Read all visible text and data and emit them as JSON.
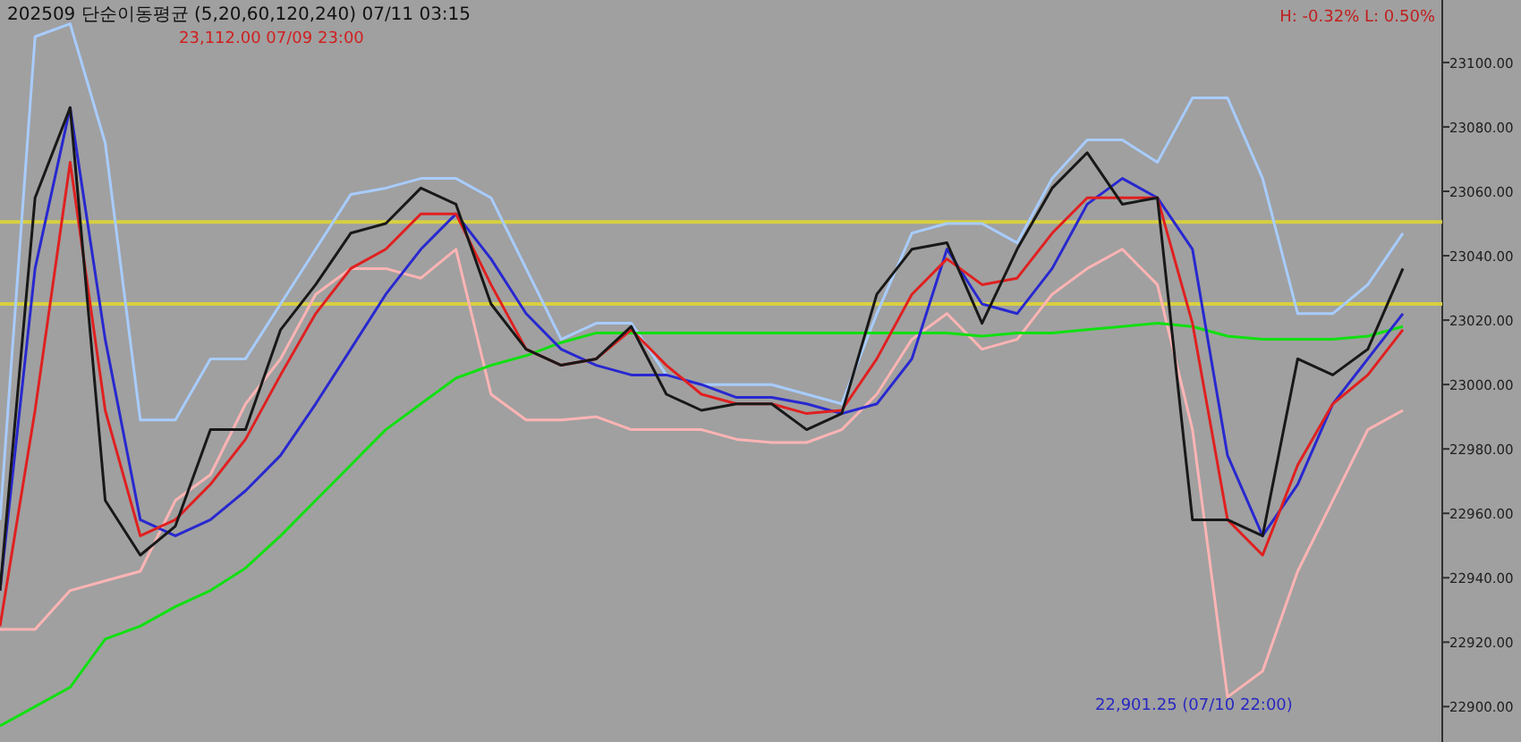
{
  "chart_data": {
    "type": "line",
    "title": "202509 단순이동평균 (5,20,60,120,240) 07/11 03:15",
    "annotations": [
      "H: -0.32%  L: 0.50%",
      "23,112.00 07/09 23:00",
      "22,901.25 (07/10 22:00)"
    ],
    "categories": [
      null,
      null,
      null,
      null,
      null,
      null,
      null,
      null,
      null,
      null,
      null,
      null,
      null,
      null,
      null,
      null,
      null,
      null,
      null,
      null,
      null,
      null,
      null,
      null,
      null,
      null,
      null,
      null,
      null,
      null,
      null,
      null,
      null,
      null,
      null,
      null,
      null,
      null,
      null,
      null,
      null
    ],
    "series": [
      {
        "color": "#a8ccff",
        "values": [
          22958,
          23108,
          23112,
          23075,
          22989,
          22989,
          23008,
          23008,
          23025,
          23042,
          23059,
          23061,
          23064,
          23064,
          23058,
          23036,
          23014,
          23019,
          23019,
          23003,
          23000,
          23000,
          23000,
          22997,
          22994,
          23022,
          23047,
          23050,
          23050,
          23044,
          23064,
          23076,
          23076,
          23069,
          23089,
          23089,
          23064,
          23022,
          23022,
          23031,
          23047
        ]
      },
      {
        "color": "#ffb4b4",
        "values": [
          22924,
          22924,
          22936,
          22939,
          22942,
          22964,
          22972,
          22994,
          23008,
          23028,
          23036,
          23036,
          23033,
          23042,
          22997,
          22989,
          22989,
          22990,
          22986,
          22986,
          22986,
          22983,
          22982,
          22982,
          22986,
          22997,
          23014,
          23022,
          23011,
          23014,
          23028,
          23036,
          23042,
          23031,
          22986,
          22903,
          22911,
          22942,
          22964,
          22986,
          22992
        ]
      },
      {
        "color": "#10e010",
        "values": [
          22894,
          22900,
          22906,
          22921,
          22925,
          22931,
          22936,
          22943,
          22953,
          22964,
          22975,
          22986,
          22994,
          23002,
          23006,
          23009,
          23013,
          23016,
          23016,
          23016,
          23016,
          23016,
          23016,
          23016,
          23016,
          23016,
          23016,
          23016,
          23015,
          23016,
          23016,
          23017,
          23018,
          23019,
          23018,
          23015,
          23014,
          23014,
          23014,
          23015,
          23018
        ]
      },
      {
        "color": "#2828d0",
        "values": [
          22936,
          23036,
          23086,
          23014,
          22958,
          22953,
          22958,
          22967,
          22978,
          22994,
          23011,
          23028,
          23042,
          23053,
          23039,
          23022,
          23011,
          23006,
          23003,
          23003,
          23000,
          22996,
          22996,
          22994,
          22991,
          22994,
          23008,
          23042,
          23025,
          23022,
          23036,
          23056,
          23064,
          23058,
          23042,
          22978,
          22953,
          22969,
          22994,
          23008,
          23022
        ]
      },
      {
        "color": "#e02020",
        "values": [
          22925,
          22992,
          23069,
          22992,
          22953,
          22958,
          22969,
          22983,
          23003,
          23022,
          23036,
          23042,
          23053,
          23053,
          23031,
          23011,
          23006,
          23008,
          23017,
          23006,
          22997,
          22994,
          22994,
          22991,
          22992,
          23008,
          23028,
          23039,
          23031,
          23033,
          23047,
          23058,
          23058,
          23058,
          23019,
          22958,
          22947,
          22975,
          22994,
          23003,
          23017
        ]
      },
      {
        "color": "#181818",
        "values": [
          22936,
          23058,
          23086,
          22964,
          22947,
          22956,
          22986,
          22986,
          23017,
          23031,
          23047,
          23050,
          23061,
          23056,
          23025,
          23011,
          23006,
          23008,
          23018,
          22997,
          22992,
          22994,
          22994,
          22986,
          22991,
          23028,
          23042,
          23044,
          23019,
          23042,
          23061,
          23072,
          23056,
          23058,
          22958,
          22958,
          22953,
          23008,
          23003,
          23011,
          23036
        ]
      }
    ],
    "ylim": [
      22889,
      23119.4
    ],
    "yticks": [
      {
        "value": 22900,
        "label": "22900.00"
      },
      {
        "value": 22920,
        "label": "22920.00"
      },
      {
        "value": 22940,
        "label": "22940.00"
      },
      {
        "value": 22960,
        "label": "22960.00"
      },
      {
        "value": 22980,
        "label": "22980.00"
      },
      {
        "value": 23000,
        "label": "23000.00"
      },
      {
        "value": 23020,
        "label": "23020.00"
      },
      {
        "value": 23040,
        "label": "23040.00"
      },
      {
        "value": 23060,
        "label": "23060.00"
      },
      {
        "value": 23080,
        "label": "23080.00"
      },
      {
        "value": 23100,
        "label": "23100.00"
      }
    ],
    "tick_labels": "y",
    "ref_lines": [
      {
        "axis": "y",
        "value": 23050.5,
        "color": "#d8d040"
      },
      {
        "axis": "y",
        "value": 23025,
        "color": "#d8d040"
      }
    ]
  }
}
